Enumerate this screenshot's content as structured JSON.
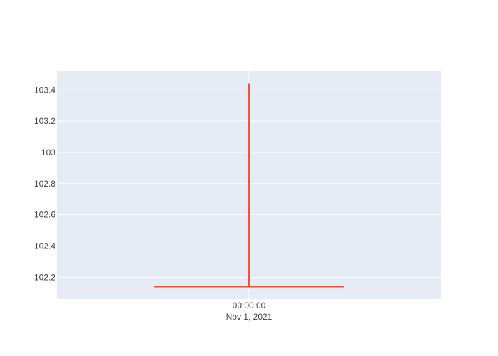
{
  "chart_data": {
    "type": "ohlc",
    "title": "",
    "xlabel": "",
    "ylabel": "",
    "x_tick_label": {
      "time": "00:00:00",
      "date": "Nov 1, 2021"
    },
    "y_ticks": [
      102.2,
      102.4,
      102.6,
      102.8,
      103,
      103.2,
      103.4
    ],
    "y_tick_labels": [
      "102.2",
      "102.4",
      "102.6",
      "102.8",
      "103",
      "103.2",
      "103.4"
    ],
    "ylim": [
      102.06,
      103.52
    ],
    "grid": true,
    "points": [
      {
        "date": "Nov 1, 2021",
        "open": 102.14,
        "high": 103.44,
        "low": 102.14,
        "close": 102.14
      }
    ],
    "colors": {
      "decreasing": "#ef553b",
      "plot_background": "#e5ecf6",
      "grid": "#ffffff"
    }
  }
}
